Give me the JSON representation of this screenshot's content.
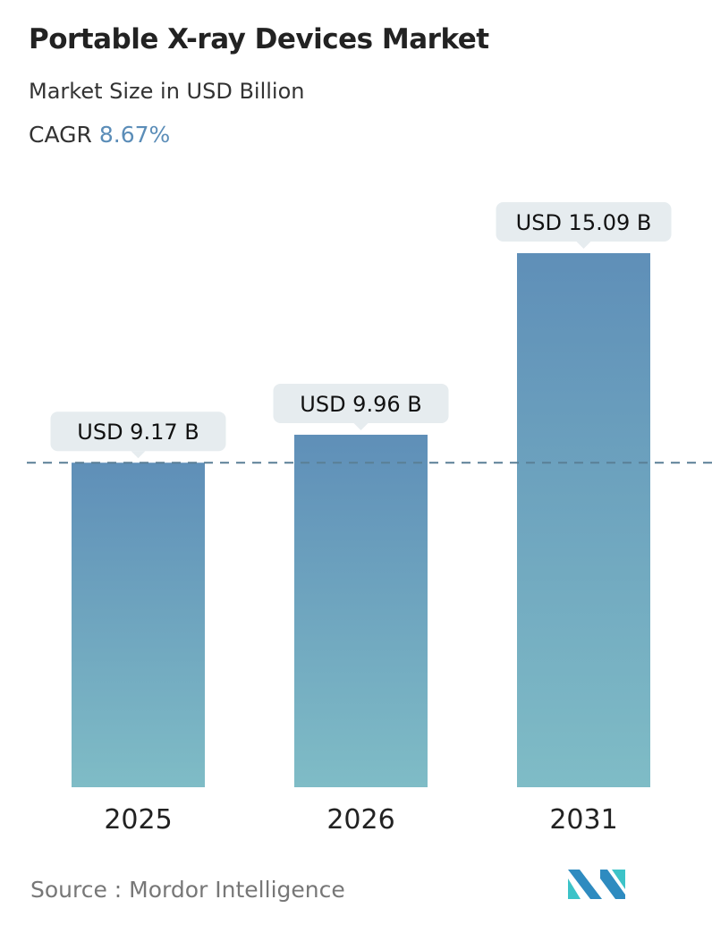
{
  "header": {
    "title": "Portable X-ray Devices Market",
    "subtitle": "Market Size in USD Billion",
    "cagr_label": "CAGR",
    "cagr_value": "8.67%"
  },
  "chart_data": {
    "type": "bar",
    "categories": [
      "2025",
      "2026",
      "2031"
    ],
    "values": [
      9.17,
      9.96,
      15.09
    ],
    "data_labels": [
      "USD 9.17 B",
      "USD 9.96 B",
      "USD 15.09 B"
    ],
    "unit": "USD Billion",
    "reference_line": 9.17,
    "grid": false,
    "colors": {
      "bar_top": "#5f8fb8",
      "bar_bottom": "#7fbcc6",
      "label_bg": "#e6ecef",
      "ref_line": "#5a7f96",
      "cagr": "#5b8db8"
    }
  },
  "footer": {
    "source": "Source :  Mordor Intelligence",
    "logo_text": "MI"
  }
}
